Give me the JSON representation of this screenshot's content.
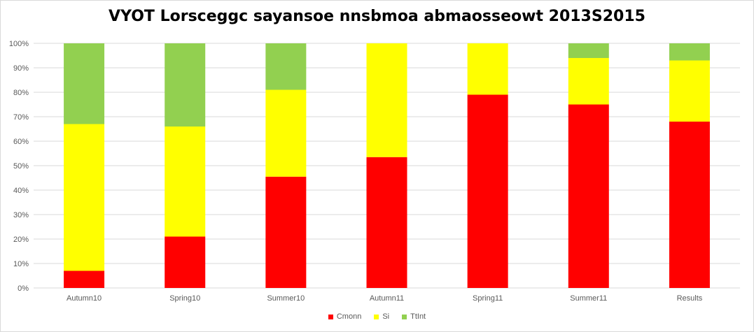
{
  "chart_data": {
    "type": "bar",
    "stacked": true,
    "title": "VYOT Lorsceggc sayansoe nnsbmoa abmaosseowt 2013S2015",
    "xlabel": "",
    "ylabel": "",
    "categories": [
      "Autumn10",
      "Spring10",
      "Summer10",
      "Autumn11",
      "Spring11",
      "Summer11",
      "Results"
    ],
    "series": [
      {
        "name": "Cmonn",
        "color": "#ff0000",
        "values": [
          7,
          21,
          45.5,
          53.5,
          79,
          75,
          68
        ]
      },
      {
        "name": "Si",
        "color": "#ffff00",
        "values": [
          60,
          45,
          35.5,
          46.5,
          21,
          19,
          25
        ]
      },
      {
        "name": "TtInt",
        "color": "#92d050",
        "values": [
          33,
          34,
          19,
          0,
          0,
          6,
          7
        ]
      }
    ],
    "yticks": [
      "0%",
      "10%",
      "20%",
      "30%",
      "40%",
      "50%",
      "60%",
      "70%",
      "80%",
      "90%",
      "100%"
    ],
    "ylim": [
      0,
      100
    ],
    "grid": true,
    "legend_position": "bottom"
  }
}
